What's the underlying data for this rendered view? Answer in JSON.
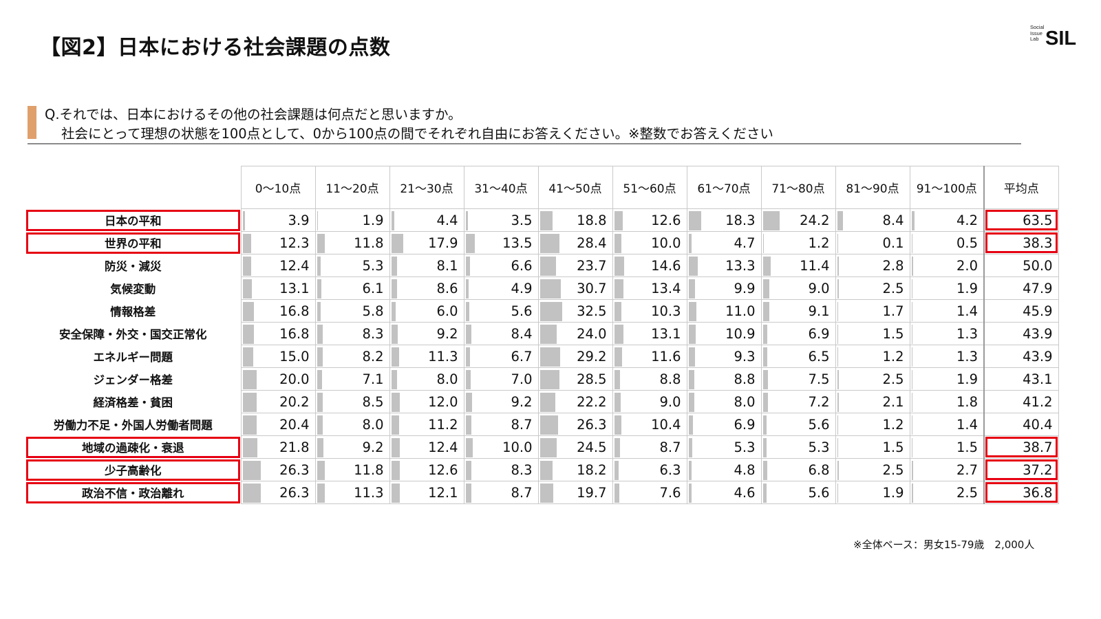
{
  "header": {
    "title": "【図2】日本における社会課題の点数",
    "logo_small_lines": [
      "Social",
      "Issue",
      "Lab"
    ],
    "logo_text": "SIL"
  },
  "question": {
    "line1": "Q.それでは、日本におけるその他の社会課題は何点だと思いますか。",
    "line2": "社会にとって理想の状態を100点として、0から100点の間でそれぞれ自由にお答えください。※整数でお答えください"
  },
  "footnote": "※全体ベース：男女15-79歳　2,000人",
  "colors": {
    "highlight": "#e60012",
    "bar": "#c2c2c2",
    "accent": "#e0a06c"
  },
  "chart_data": {
    "type": "table",
    "columns": [
      "0～10点",
      "11～20点",
      "21～30点",
      "31～40点",
      "41～50点",
      "51～60点",
      "61～70点",
      "71～80点",
      "81～90点",
      "91～100点"
    ],
    "average_label": "平均点",
    "highlighted_rows": [
      "日本の平和",
      "世界の平和",
      "地域の過疎化・衰退",
      "少子高齢化",
      "政治不信・政治離れ"
    ],
    "rows": [
      {
        "label": "日本の平和",
        "values": [
          "3.9",
          "1.9",
          "4.4",
          "3.5",
          "18.8",
          "12.6",
          "18.3",
          "24.2",
          "8.4",
          "4.2"
        ],
        "average": "63.5"
      },
      {
        "label": "世界の平和",
        "values": [
          "12.3",
          "11.8",
          "17.9",
          "13.5",
          "28.4",
          "10.0",
          "4.7",
          "1.2",
          "0.1",
          "0.5"
        ],
        "average": "38.3"
      },
      {
        "label": "防災・減災",
        "values": [
          "12.4",
          "5.3",
          "8.1",
          "6.6",
          "23.7",
          "14.6",
          "13.3",
          "11.4",
          "2.8",
          "2.0"
        ],
        "average": "50.0"
      },
      {
        "label": "気候変動",
        "values": [
          "13.1",
          "6.1",
          "8.6",
          "4.9",
          "30.7",
          "13.4",
          "9.9",
          "9.0",
          "2.5",
          "1.9"
        ],
        "average": "47.9"
      },
      {
        "label": "情報格差",
        "values": [
          "16.8",
          "5.8",
          "6.0",
          "5.6",
          "32.5",
          "10.3",
          "11.0",
          "9.1",
          "1.7",
          "1.4"
        ],
        "average": "45.9"
      },
      {
        "label": "安全保障・外交・国交正常化",
        "values": [
          "16.8",
          "8.3",
          "9.2",
          "8.4",
          "24.0",
          "13.1",
          "10.9",
          "6.9",
          "1.5",
          "1.3"
        ],
        "average": "43.9"
      },
      {
        "label": "エネルギー問題",
        "values": [
          "15.0",
          "8.2",
          "11.3",
          "6.7",
          "29.2",
          "11.6",
          "9.3",
          "6.5",
          "1.2",
          "1.3"
        ],
        "average": "43.9"
      },
      {
        "label": "ジェンダー格差",
        "values": [
          "20.0",
          "7.1",
          "8.0",
          "7.0",
          "28.5",
          "8.8",
          "8.8",
          "7.5",
          "2.5",
          "1.9"
        ],
        "average": "43.1"
      },
      {
        "label": "経済格差・貧困",
        "values": [
          "20.2",
          "8.5",
          "12.0",
          "9.2",
          "22.2",
          "9.0",
          "8.0",
          "7.2",
          "2.1",
          "1.8"
        ],
        "average": "41.2"
      },
      {
        "label": "労働力不足・外国人労働者問題",
        "values": [
          "20.4",
          "8.0",
          "11.2",
          "8.7",
          "26.3",
          "10.4",
          "6.9",
          "5.6",
          "1.2",
          "1.4"
        ],
        "average": "40.4"
      },
      {
        "label": "地域の過疎化・衰退",
        "values": [
          "21.8",
          "9.2",
          "12.4",
          "10.0",
          "24.5",
          "8.7",
          "5.3",
          "5.3",
          "1.5",
          "1.5"
        ],
        "average": "38.7"
      },
      {
        "label": "少子高齢化",
        "values": [
          "26.3",
          "11.8",
          "12.6",
          "8.3",
          "18.2",
          "6.3",
          "4.8",
          "6.8",
          "2.5",
          "2.7"
        ],
        "average": "37.2"
      },
      {
        "label": "政治不信・政治離れ",
        "values": [
          "26.3",
          "11.3",
          "12.1",
          "8.7",
          "19.7",
          "7.6",
          "4.6",
          "5.6",
          "1.9",
          "2.5"
        ],
        "average": "36.8"
      }
    ]
  }
}
